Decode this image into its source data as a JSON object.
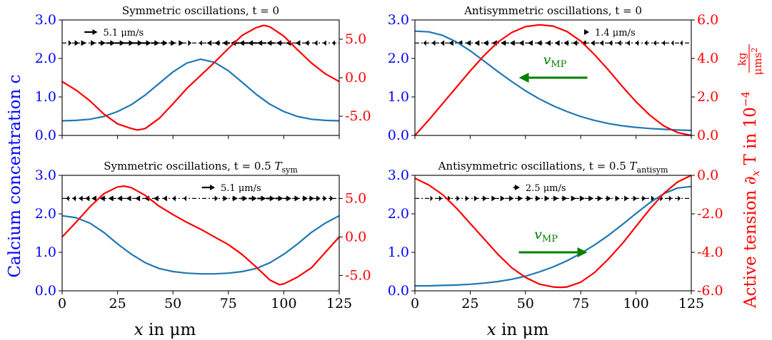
{
  "colors": {
    "left_axis": "#0000ff",
    "right_axis": "#ff0000",
    "concentration": "#1f77b4",
    "tension": "#ff0000",
    "flow": "#000000",
    "v_mp": "#008000"
  },
  "ylabel_left": "Calcium concentration c",
  "ylabel_right": {
    "prefix": "Active tension ∂",
    "sub_x": "x",
    "mid": "T in 10",
    "exp": "−4",
    "frac_num": "kg",
    "frac_den_um": "μms",
    "frac_den_exp": "2"
  },
  "xlabel": "x in μm",
  "chart_data": [
    {
      "type": "line",
      "title": "Symmetric oscillations, t = 0",
      "xlim": [
        0,
        125
      ],
      "x_ticks": [
        "0",
        "25",
        "50",
        "75",
        "100",
        "125"
      ],
      "y_left": {
        "lim": [
          0,
          3.0
        ],
        "ticks": [
          0,
          1.0,
          2.0,
          3.0
        ],
        "tick_labels": [
          "0.0",
          "1.0",
          "2.0",
          "3.0"
        ]
      },
      "y_right": {
        "lim": [
          -7.5,
          7.5
        ],
        "ticks": [
          -5,
          0,
          5
        ],
        "tick_labels": [
          "-5.0",
          "0.0",
          "5.0"
        ]
      },
      "series": [
        {
          "axis": "left",
          "color": "#1f77b4",
          "x": [
            0,
            6.25,
            12.5,
            18.75,
            25,
            31.25,
            37.5,
            43.75,
            50,
            56.25,
            62.5,
            68.75,
            75,
            81.25,
            87.5,
            93.75,
            100,
            106.25,
            112.5,
            118.75,
            125
          ],
          "y": [
            0.38,
            0.39,
            0.42,
            0.49,
            0.62,
            0.8,
            1.05,
            1.35,
            1.65,
            1.88,
            1.98,
            1.9,
            1.68,
            1.38,
            1.07,
            0.81,
            0.62,
            0.49,
            0.42,
            0.39,
            0.38
          ]
        },
        {
          "axis": "right",
          "color": "#ff0000",
          "x": [
            0,
            6.25,
            12.5,
            18.75,
            25,
            31.25,
            34,
            37.5,
            43.75,
            50,
            56.25,
            62.5,
            68.75,
            75,
            81.25,
            87.5,
            91,
            93.75,
            100,
            106.25,
            112.5,
            118.75,
            125
          ],
          "y": [
            -0.5,
            -1.6,
            -3.0,
            -4.7,
            -6.0,
            -6.6,
            -6.8,
            -6.6,
            -5.3,
            -3.4,
            -1.4,
            0.3,
            2.0,
            3.8,
            5.5,
            6.5,
            6.8,
            6.6,
            5.4,
            3.6,
            1.9,
            0.5,
            -0.5
          ]
        }
      ],
      "flow": {
        "y_level": 2.4,
        "scale_label": "5.1 μm/s",
        "scale_value": 5.1,
        "arrows": [
          [
            4,
            0.5
          ],
          [
            7,
            1
          ],
          [
            10,
            1.4
          ],
          [
            14,
            2
          ],
          [
            18,
            2.8
          ],
          [
            22,
            3.4
          ],
          [
            26,
            3.9
          ],
          [
            30,
            4.1
          ],
          [
            34,
            4.0
          ],
          [
            38,
            3.7
          ],
          [
            42,
            3.3
          ],
          [
            46,
            2.8
          ],
          [
            50,
            2.2
          ],
          [
            54,
            1.5
          ],
          [
            58,
            0.6
          ],
          [
            62,
            -0.3
          ],
          [
            66,
            -1.3
          ],
          [
            70,
            -2.2
          ],
          [
            74,
            -2.9
          ],
          [
            78,
            -3.4
          ],
          [
            82,
            -3.7
          ],
          [
            86,
            -3.8
          ],
          [
            90,
            -3.5
          ],
          [
            94,
            -3.0
          ],
          [
            98,
            -2.4
          ],
          [
            102,
            -1.8
          ],
          [
            106,
            -1.3
          ],
          [
            110,
            -0.9
          ],
          [
            114,
            -0.6
          ],
          [
            118,
            -0.4
          ],
          [
            122,
            -0.2
          ]
        ]
      },
      "v_mp": null
    },
    {
      "type": "line",
      "title": "Antisymmetric oscillations, t = 0",
      "xlim": [
        0,
        125
      ],
      "x_ticks": [
        "0",
        "25",
        "50",
        "75",
        "100",
        "125"
      ],
      "y_left": {
        "lim": [
          0,
          3.0
        ],
        "ticks": [
          0,
          1.0,
          2.0,
          3.0
        ],
        "tick_labels": [
          "0.0",
          "1.0",
          "2.0",
          "3.0"
        ]
      },
      "y_right": {
        "lim": [
          0,
          6.0
        ],
        "ticks": [
          0,
          2,
          4,
          6
        ],
        "tick_labels": [
          "0.0",
          "2.0",
          "4.0",
          "6.0"
        ]
      },
      "series": [
        {
          "axis": "left",
          "color": "#1f77b4",
          "x": [
            0,
            6.25,
            12.5,
            18.75,
            25,
            31.25,
            37.5,
            43.75,
            50,
            56.25,
            62.5,
            68.75,
            75,
            81.25,
            87.5,
            93.75,
            100,
            106.25,
            112.5,
            118.75,
            125
          ],
          "y": [
            2.71,
            2.69,
            2.6,
            2.43,
            2.2,
            1.93,
            1.66,
            1.4,
            1.16,
            0.95,
            0.77,
            0.62,
            0.49,
            0.39,
            0.31,
            0.25,
            0.21,
            0.18,
            0.16,
            0.14,
            0.13
          ]
        },
        {
          "axis": "right",
          "color": "#ff0000",
          "x": [
            0,
            6.25,
            12.5,
            18.75,
            25,
            31.25,
            37.5,
            43.75,
            50,
            56.25,
            62.5,
            68.75,
            75,
            81.25,
            87.5,
            93.75,
            100,
            106.25,
            112.5,
            118.75,
            125
          ],
          "y": [
            0.0,
            0.8,
            1.65,
            2.5,
            3.35,
            4.15,
            4.85,
            5.35,
            5.65,
            5.75,
            5.68,
            5.4,
            4.9,
            4.2,
            3.4,
            2.55,
            1.75,
            1.05,
            0.5,
            0.15,
            0.0
          ]
        }
      ],
      "flow": {
        "y_level": 2.4,
        "scale_label": "1.4 μm/s",
        "scale_value": 1.4,
        "arrows": [
          [
            4,
            -0.3
          ],
          [
            8,
            -0.6
          ],
          [
            12,
            -0.9
          ],
          [
            16,
            -1.2
          ],
          [
            20,
            -1.5
          ],
          [
            24,
            -1.7
          ],
          [
            28,
            -1.9
          ],
          [
            32,
            -2.0
          ],
          [
            36,
            -2.0
          ],
          [
            40,
            -2.0
          ],
          [
            44,
            -1.9
          ],
          [
            48,
            -1.8
          ],
          [
            52,
            -1.7
          ],
          [
            56,
            -1.6
          ],
          [
            60,
            -1.5
          ],
          [
            64,
            -1.4
          ],
          [
            68,
            -1.3
          ],
          [
            72,
            -1.2
          ],
          [
            76,
            -1.1
          ],
          [
            80,
            -1.0
          ],
          [
            84,
            -0.9
          ],
          [
            88,
            -0.8
          ],
          [
            92,
            -0.7
          ],
          [
            96,
            -0.6
          ],
          [
            100,
            -0.5
          ],
          [
            104,
            -0.4
          ],
          [
            108,
            -0.3
          ],
          [
            112,
            -0.25
          ],
          [
            116,
            -0.2
          ],
          [
            120,
            -0.15
          ]
        ]
      },
      "v_mp": {
        "label": "v",
        "sub": "MP",
        "direction": "left",
        "x": [
          78,
          47
        ],
        "y": 1.5,
        "label_x": 58,
        "label_y": 1.85
      }
    },
    {
      "type": "line",
      "title": {
        "text": "Symmetric oscillations, t = 0.5 ",
        "T": "T",
        "sub": "sym"
      },
      "xlim": [
        0,
        125
      ],
      "x_ticks": [
        "0",
        "25",
        "50",
        "75",
        "100",
        "125"
      ],
      "y_left": {
        "lim": [
          0,
          3.0
        ],
        "ticks": [
          0,
          1.0,
          2.0,
          3.0
        ],
        "tick_labels": [
          "0.0",
          "1.0",
          "2.0",
          "3.0"
        ]
      },
      "y_right": {
        "lim": [
          -7.0,
          8.0
        ],
        "ticks": [
          -5,
          0,
          5
        ],
        "tick_labels": [
          "-5.0",
          "0.0",
          "5.0"
        ]
      },
      "series": [
        {
          "axis": "left",
          "color": "#1f77b4",
          "x": [
            0,
            6.25,
            12.5,
            18.75,
            25,
            31.25,
            37.5,
            43.75,
            50,
            56.25,
            62.5,
            68.75,
            75,
            81.25,
            87.5,
            93.75,
            100,
            106.25,
            112.5,
            118.75,
            125
          ],
          "y": [
            1.95,
            1.9,
            1.76,
            1.52,
            1.22,
            0.95,
            0.73,
            0.58,
            0.5,
            0.46,
            0.44,
            0.44,
            0.46,
            0.5,
            0.58,
            0.73,
            0.95,
            1.22,
            1.52,
            1.76,
            1.95
          ]
        },
        {
          "axis": "right",
          "color": "#ff0000",
          "x": [
            0,
            6.25,
            12.5,
            18.75,
            25,
            28,
            31.25,
            37.5,
            43.75,
            50,
            56.25,
            62.5,
            68.75,
            75,
            81.25,
            87.5,
            93.75,
            98,
            100,
            106.25,
            112.5,
            118.75,
            125
          ],
          "y": [
            0.0,
            1.9,
            3.9,
            5.6,
            6.5,
            6.6,
            6.4,
            5.4,
            4.0,
            2.9,
            1.9,
            1.0,
            0.0,
            -1.0,
            -2.3,
            -3.9,
            -5.6,
            -6.2,
            -6.1,
            -5.2,
            -4.0,
            -2.0,
            0.0
          ]
        }
      ],
      "flow": {
        "y_level": 2.4,
        "scale_label": "5.1 μm/s",
        "scale_value": 5.1,
        "arrows": [
          [
            2,
            -0.3
          ],
          [
            5,
            -0.5
          ],
          [
            8,
            -0.8
          ],
          [
            11,
            -1.0
          ],
          [
            14,
            -1.4
          ],
          [
            18,
            -1.7
          ],
          [
            22,
            -2.0
          ],
          [
            26,
            -2.1
          ],
          [
            30,
            -2.0
          ],
          [
            34,
            -1.9
          ],
          [
            38,
            -1.6
          ],
          [
            42,
            -1.3
          ],
          [
            46,
            -1.0
          ],
          [
            50,
            -0.6
          ],
          [
            55,
            -0.3
          ],
          [
            60,
            -0.05
          ],
          [
            66,
            0.1
          ],
          [
            70,
            0.5
          ],
          [
            74,
            1.2
          ],
          [
            78,
            2.1
          ],
          [
            82,
            2.8
          ],
          [
            86,
            3.2
          ],
          [
            90,
            3.4
          ],
          [
            94,
            3.3
          ],
          [
            98,
            3.0
          ],
          [
            102,
            2.5
          ],
          [
            106,
            1.9
          ],
          [
            110,
            1.5
          ],
          [
            113,
            1.2
          ],
          [
            116,
            1.0
          ],
          [
            119,
            0.8
          ],
          [
            122,
            0.5
          ]
        ]
      },
      "v_mp": null
    },
    {
      "type": "line",
      "title": {
        "text": "Antisymmetric oscillations, t = 0.5 ",
        "T": "T",
        "sub": "antisym"
      },
      "xlim": [
        0,
        125
      ],
      "x_ticks": [
        "0",
        "25",
        "50",
        "75",
        "100",
        "125"
      ],
      "y_left": {
        "lim": [
          0,
          3.0
        ],
        "ticks": [
          0,
          1.0,
          2.0,
          3.0
        ],
        "tick_labels": [
          "0.0",
          "1.0",
          "2.0",
          "3.0"
        ]
      },
      "y_right": {
        "lim": [
          -6.0,
          0.0
        ],
        "ticks": [
          -6,
          -4,
          -2,
          0
        ],
        "tick_labels": [
          "-6.0",
          "-4.0",
          "-2.0",
          "0.0"
        ]
      },
      "series": [
        {
          "axis": "left",
          "color": "#1f77b4",
          "x": [
            0,
            6.25,
            12.5,
            18.75,
            25,
            31.25,
            37.5,
            43.75,
            50,
            56.25,
            62.5,
            68.75,
            75,
            81.25,
            87.5,
            93.75,
            100,
            106.25,
            112.5,
            118.75,
            125
          ],
          "y": [
            0.13,
            0.13,
            0.14,
            0.15,
            0.17,
            0.2,
            0.24,
            0.3,
            0.38,
            0.49,
            0.62,
            0.78,
            0.97,
            1.19,
            1.44,
            1.72,
            2.01,
            2.29,
            2.52,
            2.67,
            2.71
          ]
        },
        {
          "axis": "right",
          "color": "#ff0000",
          "x": [
            0,
            6.25,
            12.5,
            18.75,
            25,
            31.25,
            37.5,
            43.75,
            50,
            56.25,
            62.5,
            66,
            68.75,
            75,
            81.25,
            87.5,
            93.75,
            100,
            106.25,
            112.5,
            118.75,
            125
          ],
          "y": [
            -0.15,
            -0.5,
            -1.0,
            -1.7,
            -2.5,
            -3.3,
            -4.1,
            -4.8,
            -5.3,
            -5.65,
            -5.8,
            -5.82,
            -5.8,
            -5.55,
            -5.05,
            -4.35,
            -3.55,
            -2.65,
            -1.75,
            -0.95,
            -0.35,
            0.0
          ]
        }
      ],
      "flow": {
        "y_level": 2.4,
        "scale_label": "2.5 μm/s",
        "scale_value": 2.5,
        "arrows": [
          [
            4,
            0.1
          ],
          [
            8,
            0.15
          ],
          [
            12,
            0.25
          ],
          [
            16,
            0.35
          ],
          [
            20,
            0.5
          ],
          [
            24,
            0.6
          ],
          [
            28,
            0.75
          ],
          [
            32,
            0.9
          ],
          [
            36,
            1.0
          ],
          [
            40,
            1.1
          ],
          [
            44,
            1.2
          ],
          [
            48,
            1.3
          ],
          [
            52,
            1.4
          ],
          [
            56,
            1.45
          ],
          [
            60,
            1.5
          ],
          [
            64,
            1.5
          ],
          [
            68,
            1.55
          ],
          [
            72,
            1.5
          ],
          [
            76,
            1.45
          ],
          [
            80,
            1.4
          ],
          [
            84,
            1.3
          ],
          [
            88,
            1.2
          ],
          [
            92,
            1.1
          ],
          [
            96,
            1.0
          ],
          [
            100,
            0.85
          ],
          [
            104,
            0.7
          ],
          [
            108,
            0.55
          ],
          [
            112,
            0.4
          ],
          [
            116,
            0.3
          ],
          [
            120,
            0.2
          ]
        ]
      },
      "v_mp": {
        "label": "v",
        "sub": "MP",
        "direction": "right",
        "x": [
          47,
          78
        ],
        "y": 1.0,
        "label_x": 54,
        "label_y": 1.35
      }
    }
  ]
}
